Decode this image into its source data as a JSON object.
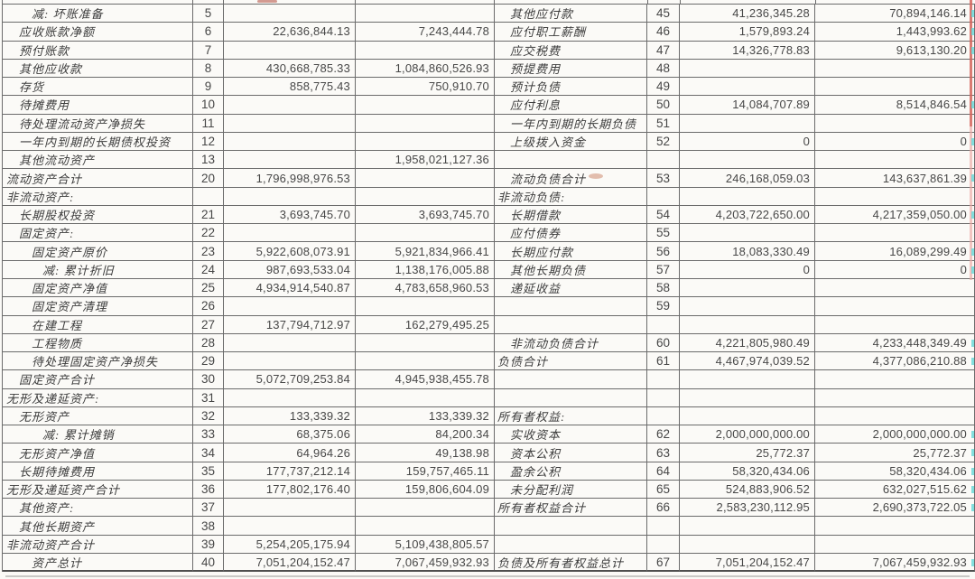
{
  "colors": {
    "paper": "#fbfaf7",
    "border": "#6b6b6b",
    "ink": "#3c3c3c",
    "digits": "#474747",
    "scan_edge_red": "#d4645c",
    "scan_fringe_cyan": "#59d6d6",
    "smudge_pink": "#c97f63"
  },
  "assets_table": {
    "rows": [
      {
        "label": "减: 坏账准备",
        "indent": 2,
        "line": "5",
        "v1": "",
        "v2": ""
      },
      {
        "label": "应收账款净额",
        "indent": 1,
        "line": "6",
        "v1": "22,636,844.13",
        "v2": "7,243,444.78"
      },
      {
        "label": "预付账款",
        "indent": 1,
        "line": "7",
        "v1": "",
        "v2": ""
      },
      {
        "label": "其他应收款",
        "indent": 1,
        "line": "8",
        "v1": "430,668,785.33",
        "v2": "1,084,860,526.93"
      },
      {
        "label": "存货",
        "indent": 1,
        "line": "9",
        "v1": "858,775.43",
        "v2": "750,910.70"
      },
      {
        "label": "待摊费用",
        "indent": 1,
        "line": "10",
        "v1": "",
        "v2": ""
      },
      {
        "label": "待处理流动资产净损失",
        "indent": 1,
        "line": "11",
        "v1": "",
        "v2": ""
      },
      {
        "label": "一年内到期的长期债权投资",
        "indent": 1,
        "line": "12",
        "v1": "",
        "v2": ""
      },
      {
        "label": "其他流动资产",
        "indent": 1,
        "line": "13",
        "v1": "",
        "v2": "1,958,021,127.36"
      },
      {
        "label": "流动资产合计",
        "indent": 0,
        "line": "20",
        "v1": "1,796,998,976.53",
        "v2": ""
      },
      {
        "label": "非流动资产:",
        "indent": 0,
        "line": "",
        "v1": "",
        "v2": ""
      },
      {
        "label": "长期股权投资",
        "indent": 1,
        "line": "21",
        "v1": "3,693,745.70",
        "v2": "3,693,745.70"
      },
      {
        "label": "固定资产:",
        "indent": 1,
        "line": "22",
        "v1": "",
        "v2": ""
      },
      {
        "label": "固定资产原价",
        "indent": 2,
        "line": "23",
        "v1": "5,922,608,073.91",
        "v2": "5,921,834,966.41"
      },
      {
        "label": "减: 累计折旧",
        "indent": 3,
        "line": "24",
        "v1": "987,693,533.04",
        "v2": "1,138,176,005.88"
      },
      {
        "label": "固定资产净值",
        "indent": 2,
        "line": "25",
        "v1": "4,934,914,540.87",
        "v2": "4,783,658,960.53"
      },
      {
        "label": "固定资产清理",
        "indent": 2,
        "line": "26",
        "v1": "",
        "v2": ""
      },
      {
        "label": "在建工程",
        "indent": 2,
        "line": "27",
        "v1": "137,794,712.97",
        "v2": "162,279,495.25"
      },
      {
        "label": "工程物质",
        "indent": 2,
        "line": "28",
        "v1": "",
        "v2": ""
      },
      {
        "label": "待处理固定资产净损失",
        "indent": 2,
        "line": "29",
        "v1": "",
        "v2": ""
      },
      {
        "label": "固定资产合计",
        "indent": 1,
        "line": "30",
        "v1": "5,072,709,253.84",
        "v2": "4,945,938,455.78"
      },
      {
        "label": "无形及递延资产:",
        "indent": 0,
        "line": "31",
        "v1": "",
        "v2": ""
      },
      {
        "label": "无形资产",
        "indent": 1,
        "line": "32",
        "v1": "133,339.32",
        "v2": "133,339.32"
      },
      {
        "label": "减: 累计摊销",
        "indent": 3,
        "line": "33",
        "v1": "68,375.06",
        "v2": "84,200.34"
      },
      {
        "label": "无形资产净值",
        "indent": 1,
        "line": "34",
        "v1": "64,964.26",
        "v2": "49,138.98"
      },
      {
        "label": "长期待摊费用",
        "indent": 1,
        "line": "35",
        "v1": "177,737,212.14",
        "v2": "159,757,465.11"
      },
      {
        "label": "无形及递延资产合计",
        "indent": 0,
        "line": "36",
        "v1": "177,802,176.40",
        "v2": "159,806,604.09"
      },
      {
        "label": "其他资产:",
        "indent": 1,
        "line": "37",
        "v1": "",
        "v2": ""
      },
      {
        "label": "其他长期资产",
        "indent": 1,
        "line": "38",
        "v1": "",
        "v2": ""
      },
      {
        "label": "非流动资产合计",
        "indent": 0,
        "line": "39",
        "v1": "5,254,205,175.94",
        "v2": "5,109,438,805.57"
      },
      {
        "label": "资产总计",
        "indent": 2,
        "line": "40",
        "v1": "7,051,204,152.47",
        "v2": "7,067,459,932.93"
      }
    ]
  },
  "liabilities_table": {
    "rows": [
      {
        "label": "其他应付款",
        "indent": 1,
        "line": "45",
        "v1": "41,236,345.28",
        "v2": "70,894,146.14"
      },
      {
        "label": "应付职工薪酬",
        "indent": 1,
        "line": "46",
        "v1": "1,579,893.24",
        "v2": "1,443,993.62"
      },
      {
        "label": "应交税费",
        "indent": 1,
        "line": "47",
        "v1": "14,326,778.83",
        "v2": "9,613,130.20"
      },
      {
        "label": "预提费用",
        "indent": 1,
        "line": "48",
        "v1": "",
        "v2": ""
      },
      {
        "label": "预计负债",
        "indent": 1,
        "line": "49",
        "v1": "",
        "v2": ""
      },
      {
        "label": "应付利息",
        "indent": 1,
        "line": "50",
        "v1": "14,084,707.89",
        "v2": "8,514,846.54"
      },
      {
        "label": "一年内到期的长期负债",
        "indent": 1,
        "line": "51",
        "v1": "",
        "v2": ""
      },
      {
        "label": "上级拨入资金",
        "indent": 1,
        "line": "52",
        "v1": "0",
        "v2": "0"
      },
      {
        "label": "",
        "indent": 1,
        "line": "",
        "v1": "",
        "v2": ""
      },
      {
        "label": "流动负债合计",
        "indent": 1,
        "line": "53",
        "v1": "246,168,059.03",
        "v2": "143,637,861.39"
      },
      {
        "label": "非流动负债:",
        "indent": 0,
        "line": "",
        "v1": "",
        "v2": ""
      },
      {
        "label": "长期借款",
        "indent": 1,
        "line": "54",
        "v1": "4,203,722,650.00",
        "v2": "4,217,359,050.00"
      },
      {
        "label": "应付债券",
        "indent": 1,
        "line": "55",
        "v1": "",
        "v2": ""
      },
      {
        "label": "长期应付款",
        "indent": 1,
        "line": "56",
        "v1": "18,083,330.49",
        "v2": "16,089,299.49"
      },
      {
        "label": "其他长期负债",
        "indent": 1,
        "line": "57",
        "v1": "0",
        "v2": "0"
      },
      {
        "label": "递延收益",
        "indent": 1,
        "line": "58",
        "v1": "",
        "v2": ""
      },
      {
        "label": "",
        "indent": 1,
        "line": "59",
        "v1": "",
        "v2": ""
      },
      {
        "label": "",
        "indent": 1,
        "line": "",
        "v1": "",
        "v2": ""
      },
      {
        "label": "非流动负债合计",
        "indent": 1,
        "line": "60",
        "v1": "4,221,805,980.49",
        "v2": "4,233,448,349.49"
      },
      {
        "label": "负债合计",
        "indent": 0,
        "line": "61",
        "v1": "4,467,974,039.52",
        "v2": "4,377,086,210.88"
      },
      {
        "label": "",
        "indent": 1,
        "line": "",
        "v1": "",
        "v2": ""
      },
      {
        "label": "",
        "indent": 1,
        "line": "",
        "v1": "",
        "v2": ""
      },
      {
        "label": "所有者权益:",
        "indent": 0,
        "line": "",
        "v1": "",
        "v2": ""
      },
      {
        "label": "实收资本",
        "indent": 1,
        "line": "62",
        "v1": "2,000,000,000.00",
        "v2": "2,000,000,000.00"
      },
      {
        "label": "资本公积",
        "indent": 1,
        "line": "63",
        "v1": "25,772.37",
        "v2": "25,772.37"
      },
      {
        "label": "盈余公积",
        "indent": 1,
        "line": "64",
        "v1": "58,320,434.06",
        "v2": "58,320,434.06"
      },
      {
        "label": "未分配利润",
        "indent": 1,
        "line": "65",
        "v1": "524,883,906.52",
        "v2": "632,027,515.62"
      },
      {
        "label": "所有者权益合计",
        "indent": 0,
        "line": "66",
        "v1": "2,583,230,112.95",
        "v2": "2,690,373,722.05"
      },
      {
        "label": "",
        "indent": 1,
        "line": "",
        "v1": "",
        "v2": ""
      },
      {
        "label": "",
        "indent": 1,
        "line": "",
        "v1": "",
        "v2": ""
      },
      {
        "label": "负债及所有者权益总计",
        "indent": 0,
        "line": "67",
        "v1": "7,051,204,152.47",
        "v2": "7,067,459,932.93"
      }
    ]
  }
}
